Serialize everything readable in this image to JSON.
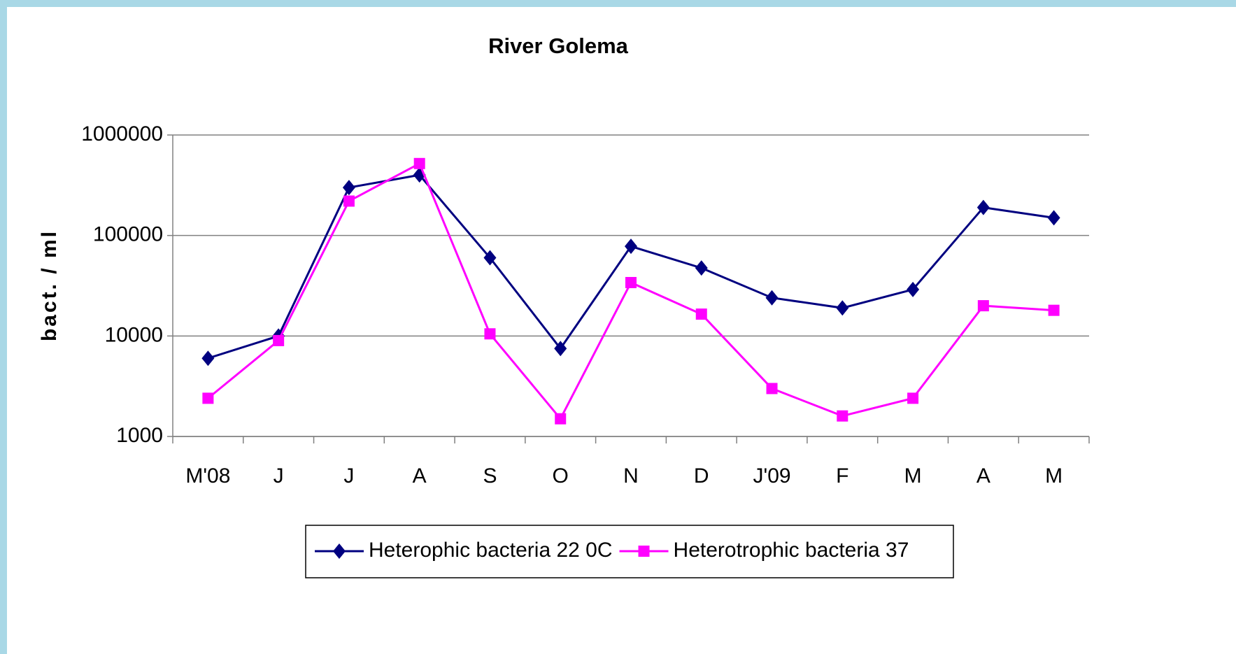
{
  "chart_data": {
    "type": "line",
    "title": "River Golema",
    "ylabel": "bact. / ml",
    "categories": [
      "M'08",
      "J",
      "J",
      "A",
      "S",
      "O",
      "N",
      "D",
      "J'09",
      "F",
      "M",
      "A",
      "M"
    ],
    "series": [
      {
        "name": "Heterophic bacteria 22 0C",
        "color": "#000080",
        "marker": "diamond",
        "values": [
          6000,
          10000,
          300000,
          400000,
          60000,
          7500,
          78000,
          47500,
          24000,
          19000,
          29000,
          190000,
          150000
        ]
      },
      {
        "name": "Heterotrophic bacteria 37",
        "color": "#ff00ff",
        "marker": "square",
        "values": [
          2400,
          9000,
          220000,
          520000,
          10500,
          1500,
          34000,
          16500,
          3000,
          1600,
          2400,
          20000,
          18000
        ]
      }
    ],
    "ylim": [
      1000,
      1000000
    ],
    "yticks": [
      1000,
      10000,
      100000,
      1000000
    ],
    "yscale": "log",
    "grid": true,
    "legend": "bottom"
  }
}
